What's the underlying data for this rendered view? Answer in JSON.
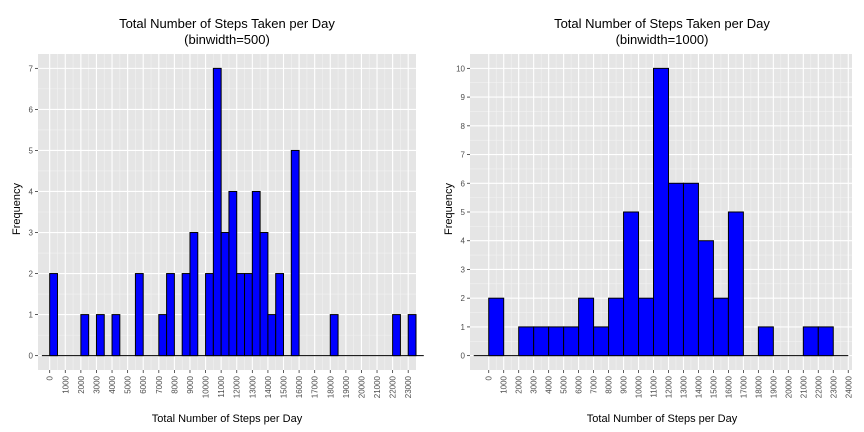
{
  "chart_data": [
    {
      "type": "bar",
      "title": "Total Number of Steps Taken per Day",
      "subtitle": "(binwidth=500)",
      "xlabel": "Total Number of Steps per Day",
      "ylabel": "Frequency",
      "binwidth": 500,
      "xlim": [
        -750,
        23500
      ],
      "ylim": [
        -0.35,
        7.35
      ],
      "grid": true,
      "x_ticks": [
        0,
        1000,
        2000,
        3000,
        4000,
        5000,
        6000,
        7000,
        8000,
        9000,
        10000,
        11000,
        12000,
        13000,
        14000,
        15000,
        16000,
        17000,
        18000,
        19000,
        20000,
        21000,
        22000,
        23000
      ],
      "x_tick_labels": [
        "0",
        "1000",
        "2000",
        "3000",
        "4000",
        "5000",
        "6000",
        "7000",
        "8000",
        "9000",
        "10000",
        "11000",
        "12000",
        "13000",
        "14000",
        "15000",
        "16000",
        "17000",
        "18000",
        "19000",
        "20000",
        "21000",
        "22000",
        "23000"
      ],
      "y_ticks": [
        0,
        1,
        2,
        3,
        4,
        5,
        6,
        7
      ],
      "y_tick_labels": [
        "0",
        "1",
        "2",
        "3",
        "4",
        "5",
        "6",
        "7"
      ],
      "bins_start": -500,
      "values": [
        0,
        2,
        0,
        0,
        0,
        1,
        0,
        1,
        0,
        1,
        0,
        0,
        2,
        0,
        0,
        1,
        2,
        0,
        2,
        3,
        0,
        2,
        7,
        3,
        4,
        2,
        2,
        4,
        3,
        1,
        2,
        0,
        5,
        0,
        0,
        0,
        0,
        1,
        0,
        0,
        0,
        0,
        0,
        0,
        0,
        1,
        0,
        1,
        0
      ],
      "bar_color": "#0000ff",
      "panel_color": "#e5e5e5"
    },
    {
      "type": "bar",
      "title": "Total Number of Steps Taken per Day",
      "subtitle": "(binwidth=1000)",
      "xlabel": "Total Number of Steps per Day",
      "ylabel": "Frequency",
      "binwidth": 1000,
      "xlim": [
        -1250,
        24250
      ],
      "ylim": [
        -0.5,
        10.5
      ],
      "grid": true,
      "x_ticks": [
        0,
        1000,
        2000,
        3000,
        4000,
        5000,
        6000,
        7000,
        8000,
        9000,
        10000,
        11000,
        12000,
        13000,
        14000,
        15000,
        16000,
        17000,
        18000,
        19000,
        20000,
        21000,
        22000,
        23000,
        24000
      ],
      "x_tick_labels": [
        "0",
        "1000",
        "2000",
        "3000",
        "4000",
        "5000",
        "6000",
        "7000",
        "8000",
        "9000",
        "10000",
        "11000",
        "12000",
        "13000",
        "14000",
        "15000",
        "16000",
        "17000",
        "18000",
        "19000",
        "20000",
        "21000",
        "22000",
        "23000",
        "24000"
      ],
      "y_ticks": [
        0,
        1,
        2,
        3,
        4,
        5,
        6,
        7,
        8,
        9,
        10
      ],
      "y_tick_labels": [
        "0",
        "1",
        "2",
        "3",
        "4",
        "5",
        "6",
        "7",
        "8",
        "9",
        "10"
      ],
      "bins_start": -1000,
      "values": [
        0,
        2,
        0,
        1,
        1,
        1,
        1,
        2,
        1,
        2,
        5,
        2,
        10,
        6,
        6,
        4,
        2,
        5,
        0,
        1,
        0,
        0,
        1,
        1,
        0
      ],
      "bar_color": "#0000ff",
      "panel_color": "#e5e5e5"
    }
  ]
}
